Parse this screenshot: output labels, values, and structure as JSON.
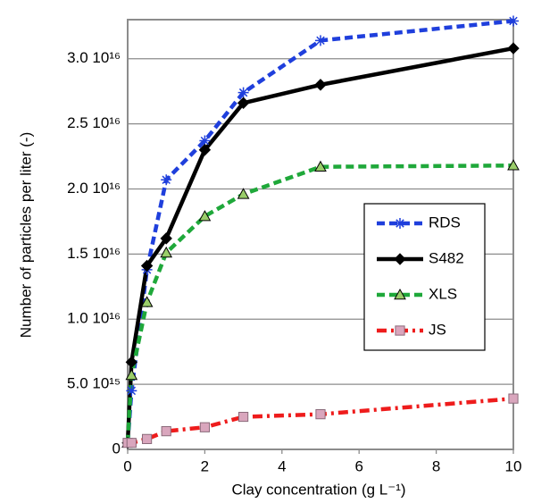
{
  "chart_data": {
    "type": "line",
    "x_label": "Clay concentration (g L⁻¹)",
    "y_label": "Number of particles per liter (-)",
    "x": [
      0,
      0.1,
      0.5,
      1,
      2,
      3,
      5,
      10
    ],
    "series": [
      {
        "name": "RDS",
        "color": "#1f3fdc",
        "marker": "asterisk",
        "dash": "dashed",
        "values": [
          500000000000000.0,
          4500000000000000.0,
          1.38e+16,
          2.07e+16,
          2.37e+16,
          2.74e+16,
          3.14e+16,
          3.29e+16
        ]
      },
      {
        "name": "S482",
        "color": "#000000",
        "marker": "diamond",
        "dash": "solid",
        "values": [
          500000000000000.0,
          6700000000000000.0,
          1.41e+16,
          1.62e+16,
          2.3e+16,
          2.66e+16,
          2.8e+16,
          3.08e+16
        ]
      },
      {
        "name": "XLS",
        "color": "#1fa83a",
        "marker": "triangle",
        "marker_color": "#9acd6a",
        "dash": "dashed",
        "values": [
          500000000000000.0,
          5700000000000000.0,
          1.13e+16,
          1.51e+16,
          1.79e+16,
          1.96e+16,
          2.17e+16,
          2.18e+16
        ]
      },
      {
        "name": "JS",
        "color": "#ee1c1c",
        "marker": "square",
        "marker_color": "#d9a6bd",
        "dash": "dashdot",
        "values": [
          500000000000000.0,
          500000000000000.0,
          800000000000000.0,
          1400000000000000.0,
          1700000000000000.0,
          2500000000000000.0,
          2700000000000000.0,
          3900000000000000.0
        ]
      }
    ],
    "xlim": [
      0,
      10
    ],
    "xticks": [
      0,
      2,
      4,
      6,
      8,
      10
    ],
    "ylim": [
      0,
      3.3e+16
    ],
    "yticks": [
      0,
      {
        "value": 5000000000000000.0,
        "label": "5.0 10¹⁵"
      },
      {
        "value": 1e+16,
        "label": "1.0 10¹⁶"
      },
      {
        "value": 1.5e+16,
        "label": "1.5 10¹⁶"
      },
      {
        "value": 2e+16,
        "label": "2.0 10¹⁶"
      },
      {
        "value": 2.5e+16,
        "label": "2.5 10¹⁶"
      },
      {
        "value": 3e+16,
        "label": "3.0 10¹⁶"
      }
    ],
    "grid": true
  }
}
